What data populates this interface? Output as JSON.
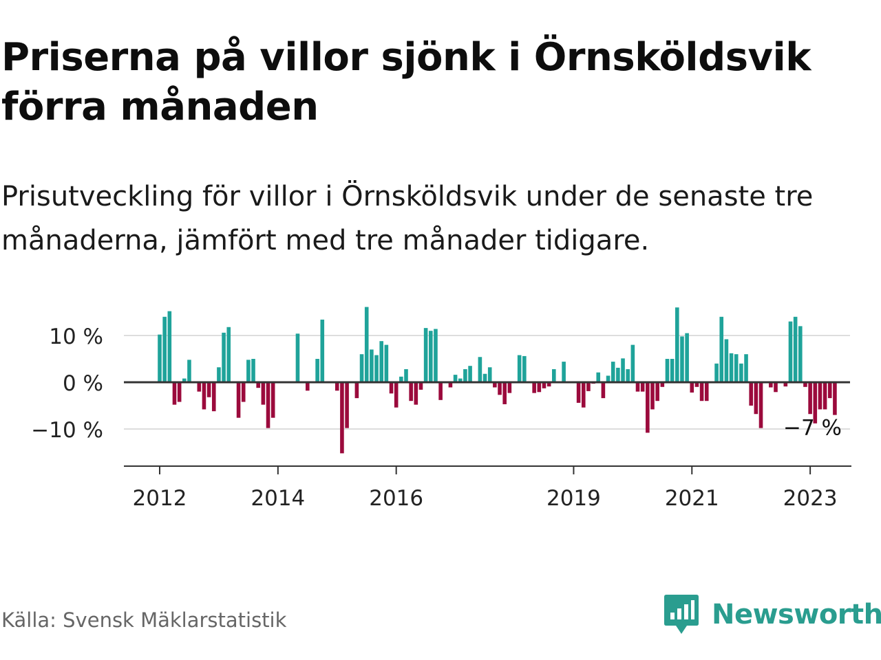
{
  "title": "Priserna på villor sjönk i Örnsköldsvik förra månaden",
  "subtitle": "Prisutveckling för villor i Örnsköldsvik under de senaste tre månaderna, jämfört med tre månader tidigare.",
  "source": "Källa: Svensk Mäklarstatistik",
  "brand": {
    "name": "Newsworthy",
    "icon": "newsworthy-logo-icon",
    "color": "#2a9d8f"
  },
  "chart_data": {
    "type": "bar",
    "ylim": [
      -17,
      17
    ],
    "y_ticks": [
      {
        "value": 10,
        "label": "10 %"
      },
      {
        "value": 0,
        "label": "0 %"
      },
      {
        "value": -10,
        "label": "−10 %"
      }
    ],
    "x_ticks": [
      {
        "index": 0,
        "label": "2012"
      },
      {
        "index": 24,
        "label": "2014"
      },
      {
        "index": 48,
        "label": "2016"
      },
      {
        "index": 84,
        "label": "2019"
      },
      {
        "index": 108,
        "label": "2021"
      },
      {
        "index": 132,
        "label": "2023"
      }
    ],
    "annotation": {
      "text": "−7 %",
      "index": 133
    },
    "colors": {
      "positive": "#1fa39a",
      "negative": "#9b0a3c",
      "zero_line": "#333333",
      "grid": "#dddddd"
    },
    "values": [
      10.2,
      14,
      15.2,
      -4.8,
      -4.2,
      0.8,
      4.8,
      -0.2,
      -2,
      -5.8,
      -3.2,
      -6.2,
      3.2,
      10.6,
      11.8,
      0.2,
      -7.6,
      -4.2,
      4.8,
      5,
      -1.2,
      -4.8,
      -9.8,
      -7.6,
      0.2,
      0.2,
      0.2,
      0.2,
      10.4,
      -0.2,
      -1.8,
      0.2,
      5,
      13.4,
      0.2,
      0.2,
      -1.8,
      -15.2,
      -9.8,
      0.2,
      -3.4,
      6,
      16.1,
      7,
      5.8,
      8.8,
      8,
      -2.4,
      -5.4,
      1.2,
      2.8,
      -4,
      -4.8,
      -1.6,
      11.6,
      11,
      11.4,
      -3.8,
      0.2,
      -1.1,
      1.6,
      0.8,
      2.8,
      3.5,
      -0.2,
      5.4,
      1.8,
      3.2,
      -1.1,
      -2.7,
      -4.7,
      -2.3,
      0.2,
      5.8,
      5.6,
      -0.1,
      -2.3,
      -2.1,
      -1.3,
      -0.9,
      2.8,
      -0.1,
      4.4,
      0.1,
      -0.2,
      -4.4,
      -5.4,
      -1.9,
      -0.3,
      2.1,
      -3.4,
      1.4,
      4.4,
      3.1,
      5.1,
      2.8,
      8,
      -2,
      -2,
      -10.8,
      -5.8,
      -4,
      -1,
      5,
      5,
      16,
      9.8,
      10.5,
      -2.2,
      -1,
      -4,
      -4,
      0.2,
      4,
      14,
      9.2,
      6.2,
      6,
      4,
      6,
      -5,
      -6.8,
      -9.8,
      -0.2,
      -1.1,
      -2.1,
      0.2,
      -0.9,
      13,
      14,
      12,
      -1,
      -6.8,
      -8.8,
      -5.8,
      -5.8,
      -3.4,
      -7
    ]
  }
}
